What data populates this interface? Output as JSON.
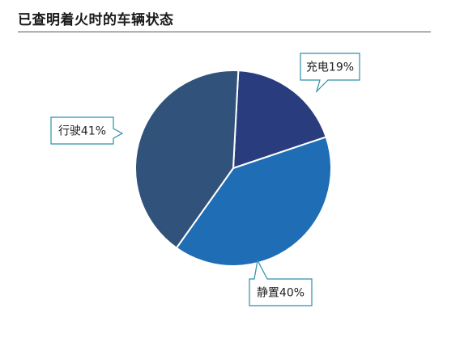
{
  "header": {
    "title": "已查明着火时的车辆状态"
  },
  "chart_data": {
    "type": "pie",
    "slices": [
      {
        "label": "充电",
        "value": 19,
        "display": "充电19%",
        "color": "#283c7e"
      },
      {
        "label": "静置",
        "value": 40,
        "display": "静置40%",
        "color": "#1e6db5"
      },
      {
        "label": "行驶",
        "value": 41,
        "display": "行驶41%",
        "color": "#31527a"
      }
    ],
    "callout_border_color": "#2d8fab",
    "start_angle_deg": 3
  }
}
